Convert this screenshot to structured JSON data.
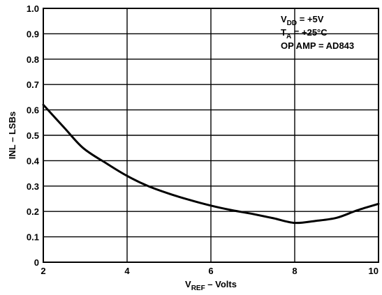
{
  "chart_data": {
    "type": "line",
    "title": "",
    "xlabel": {
      "main": "V",
      "sub": "REF",
      "rest": " – Volts"
    },
    "ylabel": "INL – LSBs",
    "xlim": [
      2,
      10
    ],
    "ylim": [
      0,
      1.0
    ],
    "xticks": [
      "2",
      "4",
      "6",
      "8",
      "10"
    ],
    "yticks": [
      "0",
      "0.1",
      "0.2",
      "0.3",
      "0.4",
      "0.5",
      "0.6",
      "0.7",
      "0.8",
      "0.9",
      "1.0"
    ],
    "grid": true,
    "series": [
      {
        "x": [
          2.0,
          2.5,
          2.95,
          3.5,
          4.0,
          4.5,
          5.0,
          5.5,
          6.0,
          6.5,
          7.0,
          7.5,
          8.0,
          8.5,
          9.0,
          9.5,
          10.0
        ],
        "y": [
          0.62,
          0.53,
          0.45,
          0.39,
          0.34,
          0.3,
          0.27,
          0.245,
          0.223,
          0.205,
          0.19,
          0.173,
          0.155,
          0.163,
          0.175,
          0.205,
          0.23
        ]
      }
    ],
    "annotations": [
      {
        "main": "V",
        "sub": "DD",
        "rest": " = +5V"
      },
      {
        "main": "T",
        "sub": "A",
        "rest": " = +25°C"
      },
      {
        "main": "OP AMP = AD843",
        "sub": "",
        "rest": ""
      }
    ]
  }
}
